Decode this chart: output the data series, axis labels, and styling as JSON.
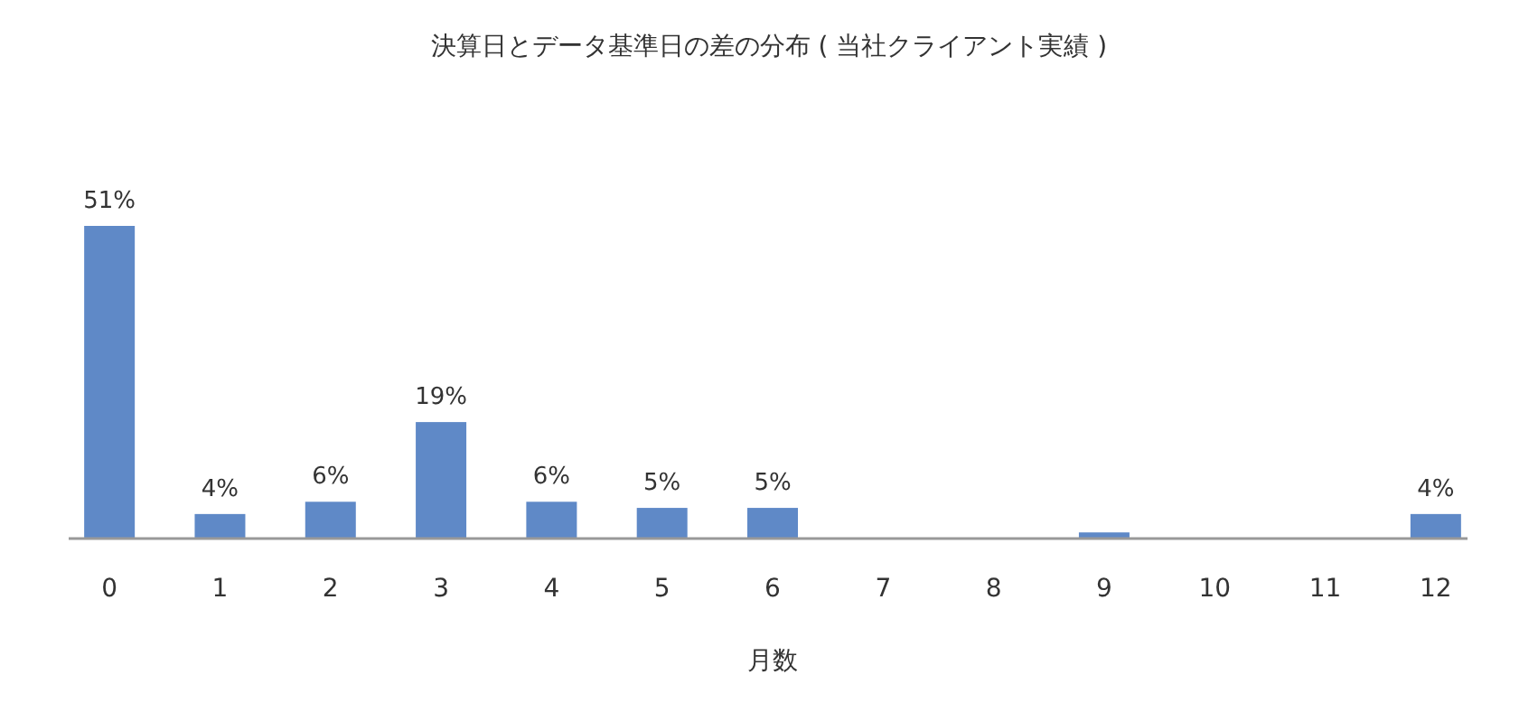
{
  "chart_data": {
    "type": "bar",
    "title": "決算日とデータ基準日の差の分布 ( 当社クライアント実績 )",
    "xlabel": "月数",
    "categories": [
      "0",
      "1",
      "2",
      "3",
      "4",
      "5",
      "6",
      "7",
      "8",
      "9",
      "10",
      "11",
      "12"
    ],
    "values": [
      51,
      4,
      6,
      19,
      6,
      5,
      5,
      0,
      0,
      1,
      0,
      0,
      4
    ],
    "value_labels": [
      "51%",
      "4%",
      "6%",
      "19%",
      "6%",
      "5%",
      "5%",
      null,
      null,
      null,
      null,
      null,
      "4%"
    ],
    "color": "#5f89c7"
  }
}
